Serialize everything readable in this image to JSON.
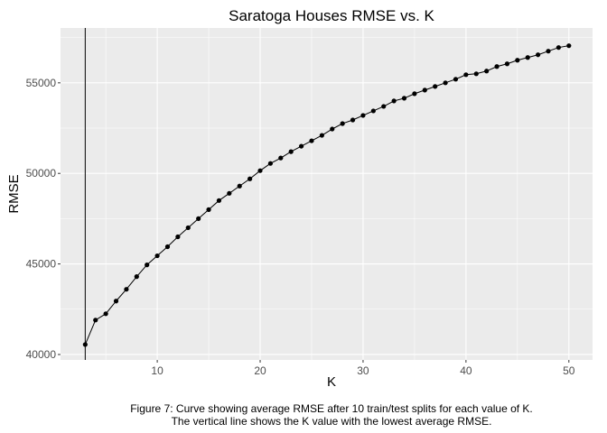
{
  "chart_data": {
    "type": "line",
    "title": "Saratoga Houses RMSE vs. K",
    "xlabel": "K",
    "ylabel": "RMSE",
    "xlim": [
      0.6,
      52.3
    ],
    "ylim": [
      39700,
      58030
    ],
    "x_ticks": [
      10,
      20,
      30,
      40,
      50
    ],
    "y_ticks": [
      40000,
      45000,
      50000,
      55000
    ],
    "grid": true,
    "vertical_line_x": 3,
    "series": [
      {
        "x": [
          3,
          4,
          5,
          6,
          7,
          8,
          9,
          10,
          11,
          12,
          13,
          14,
          15,
          16,
          17,
          18,
          19,
          20,
          21,
          22,
          23,
          24,
          25,
          26,
          27,
          28,
          29,
          30,
          31,
          32,
          33,
          34,
          35,
          36,
          37,
          38,
          39,
          40,
          41,
          42,
          43,
          44,
          45,
          46,
          47,
          48,
          49,
          50
        ],
        "values": [
          40550,
          41900,
          42250,
          42950,
          43600,
          44300,
          44950,
          45450,
          45950,
          46500,
          47000,
          47500,
          48000,
          48500,
          48900,
          49300,
          49700,
          50150,
          50550,
          50850,
          51200,
          51500,
          51800,
          52100,
          52450,
          52750,
          52950,
          53200,
          53450,
          53700,
          54000,
          54150,
          54400,
          54600,
          54800,
          55000,
          55200,
          55450,
          55500,
          55650,
          55900,
          56050,
          56250,
          56400,
          56550,
          56750,
          56950,
          57050
        ]
      }
    ]
  },
  "caption": {
    "line1": "Figure 7: Curve showing average RMSE after 10 train/test splits for each value of K.",
    "line2": "The vertical line shows the K value with the lowest average RMSE."
  },
  "colors": {
    "panel_bg": "#ebebeb",
    "grid_major": "#ffffff",
    "series": "#000000",
    "tick_text": "#4d4d4d"
  }
}
